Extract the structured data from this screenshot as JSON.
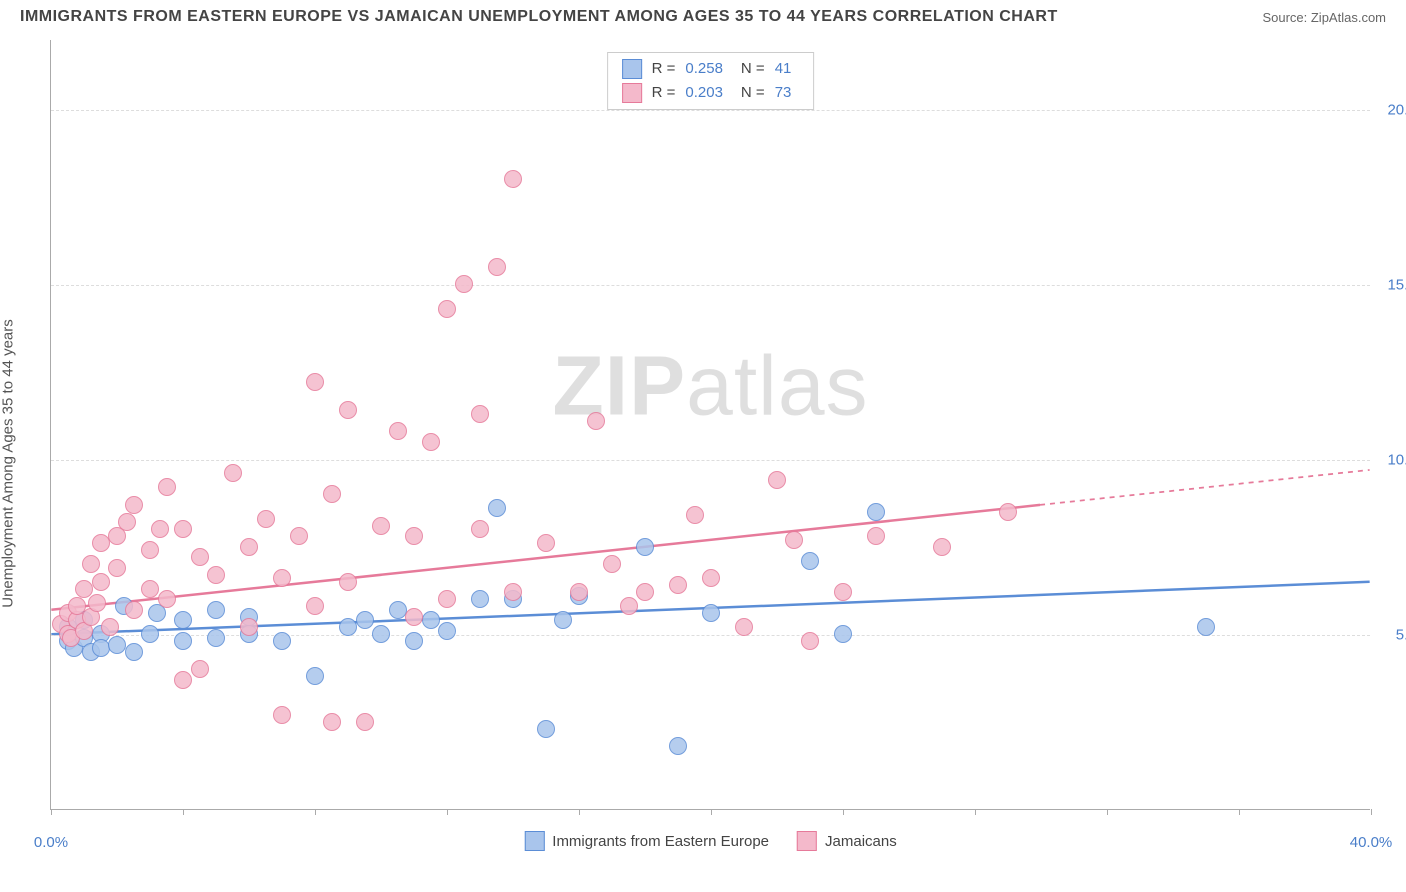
{
  "title": "IMMIGRANTS FROM EASTERN EUROPE VS JAMAICAN UNEMPLOYMENT AMONG AGES 35 TO 44 YEARS CORRELATION CHART",
  "source": "Source: ZipAtlas.com",
  "watermark_a": "ZIP",
  "watermark_b": "atlas",
  "y_axis_label": "Unemployment Among Ages 35 to 44 years",
  "chart": {
    "type": "scatter",
    "xlim": [
      0,
      40
    ],
    "ylim": [
      0,
      22
    ],
    "x_ticks": [
      0,
      4,
      8,
      12,
      16,
      20,
      24,
      28,
      32,
      36,
      40
    ],
    "x_tick_labels": {
      "0": "0.0%",
      "40": "40.0%"
    },
    "y_ticks": [
      5,
      10,
      15,
      20
    ],
    "y_tick_labels": {
      "5": "5.0%",
      "10": "10.0%",
      "15": "15.0%",
      "20": "20.0%"
    },
    "x_tick_color": "#4a7ec9",
    "y_tick_color": "#4a7ec9",
    "grid_color": "#dddddd",
    "background_color": "#ffffff",
    "axis_color": "#aaaaaa",
    "point_radius": 9,
    "point_border_width": 1.5,
    "point_fill_opacity": 0.35,
    "series": [
      {
        "name": "Immigrants from Eastern Europe",
        "color_border": "#5b8dd6",
        "color_fill": "#a9c5ec",
        "r_label": "R =",
        "r_value": "0.258",
        "n_label": "N =",
        "n_value": "41",
        "trend": {
          "x1": 0,
          "y1": 5.0,
          "x2": 40,
          "y2": 6.5,
          "dash_from_x": 40,
          "width": 2.5
        },
        "points": [
          [
            0.5,
            4.8
          ],
          [
            0.5,
            5.2
          ],
          [
            0.7,
            4.6
          ],
          [
            1.0,
            4.9
          ],
          [
            1.0,
            5.4
          ],
          [
            1.2,
            4.5
          ],
          [
            1.5,
            5.0
          ],
          [
            1.5,
            4.6
          ],
          [
            2.0,
            4.7
          ],
          [
            2.2,
            5.8
          ],
          [
            2.5,
            4.5
          ],
          [
            3.0,
            5.0
          ],
          [
            3.2,
            5.6
          ],
          [
            4.0,
            4.8
          ],
          [
            4.0,
            5.4
          ],
          [
            5.0,
            4.9
          ],
          [
            5.0,
            5.7
          ],
          [
            6.0,
            5.0
          ],
          [
            6.0,
            5.5
          ],
          [
            7.0,
            4.8
          ],
          [
            8.0,
            3.8
          ],
          [
            9.0,
            5.2
          ],
          [
            9.5,
            5.4
          ],
          [
            10.0,
            5.0
          ],
          [
            10.5,
            5.7
          ],
          [
            11.0,
            4.8
          ],
          [
            11.5,
            5.4
          ],
          [
            12.0,
            5.1
          ],
          [
            13.0,
            6.0
          ],
          [
            13.5,
            8.6
          ],
          [
            14.0,
            6.0
          ],
          [
            15.0,
            2.3
          ],
          [
            15.5,
            5.4
          ],
          [
            16.0,
            6.1
          ],
          [
            18.0,
            7.5
          ],
          [
            19.0,
            1.8
          ],
          [
            20.0,
            5.6
          ],
          [
            23.0,
            7.1
          ],
          [
            24.0,
            5.0
          ],
          [
            25.0,
            8.5
          ],
          [
            35.0,
            5.2
          ]
        ]
      },
      {
        "name": "Jamaicans",
        "color_border": "#e67a9a",
        "color_fill": "#f4b9cb",
        "r_label": "R =",
        "r_value": "0.203",
        "n_label": "N =",
        "n_value": "73",
        "trend": {
          "x1": 0,
          "y1": 5.7,
          "x2": 40,
          "y2": 9.7,
          "dash_from_x": 30,
          "width": 2.5
        },
        "points": [
          [
            0.3,
            5.3
          ],
          [
            0.5,
            5.0
          ],
          [
            0.5,
            5.6
          ],
          [
            0.6,
            4.9
          ],
          [
            0.8,
            5.4
          ],
          [
            0.8,
            5.8
          ],
          [
            1.0,
            5.1
          ],
          [
            1.0,
            6.3
          ],
          [
            1.2,
            5.5
          ],
          [
            1.2,
            7.0
          ],
          [
            1.4,
            5.9
          ],
          [
            1.5,
            6.5
          ],
          [
            1.5,
            7.6
          ],
          [
            1.8,
            5.2
          ],
          [
            2.0,
            6.9
          ],
          [
            2.0,
            7.8
          ],
          [
            2.3,
            8.2
          ],
          [
            2.5,
            5.7
          ],
          [
            2.5,
            8.7
          ],
          [
            3.0,
            6.3
          ],
          [
            3.0,
            7.4
          ],
          [
            3.3,
            8.0
          ],
          [
            3.5,
            6.0
          ],
          [
            3.5,
            9.2
          ],
          [
            4.0,
            3.7
          ],
          [
            4.0,
            8.0
          ],
          [
            4.5,
            7.2
          ],
          [
            4.5,
            4.0
          ],
          [
            5.0,
            6.7
          ],
          [
            5.5,
            9.6
          ],
          [
            6.0,
            7.5
          ],
          [
            6.0,
            5.2
          ],
          [
            6.5,
            8.3
          ],
          [
            7.0,
            6.6
          ],
          [
            7.0,
            2.7
          ],
          [
            7.5,
            7.8
          ],
          [
            8.0,
            12.2
          ],
          [
            8.0,
            5.8
          ],
          [
            8.5,
            9.0
          ],
          [
            8.5,
            2.5
          ],
          [
            9.0,
            6.5
          ],
          [
            9.0,
            11.4
          ],
          [
            9.5,
            2.5
          ],
          [
            10.0,
            8.1
          ],
          [
            10.5,
            10.8
          ],
          [
            11.0,
            5.5
          ],
          [
            11.0,
            7.8
          ],
          [
            11.5,
            10.5
          ],
          [
            12.0,
            6.0
          ],
          [
            12.0,
            14.3
          ],
          [
            12.5,
            15.0
          ],
          [
            13.0,
            8.0
          ],
          [
            13.0,
            11.3
          ],
          [
            13.5,
            15.5
          ],
          [
            14.0,
            18.0
          ],
          [
            14.0,
            6.2
          ],
          [
            15.0,
            7.6
          ],
          [
            16.0,
            6.2
          ],
          [
            16.5,
            11.1
          ],
          [
            17.0,
            7.0
          ],
          [
            17.5,
            5.8
          ],
          [
            18.0,
            6.2
          ],
          [
            19.0,
            6.4
          ],
          [
            19.5,
            8.4
          ],
          [
            20.0,
            6.6
          ],
          [
            21.0,
            5.2
          ],
          [
            22.0,
            9.4
          ],
          [
            22.5,
            7.7
          ],
          [
            23.0,
            4.8
          ],
          [
            24.0,
            6.2
          ],
          [
            25.0,
            7.8
          ],
          [
            27.0,
            7.5
          ],
          [
            29.0,
            8.5
          ]
        ]
      }
    ]
  }
}
